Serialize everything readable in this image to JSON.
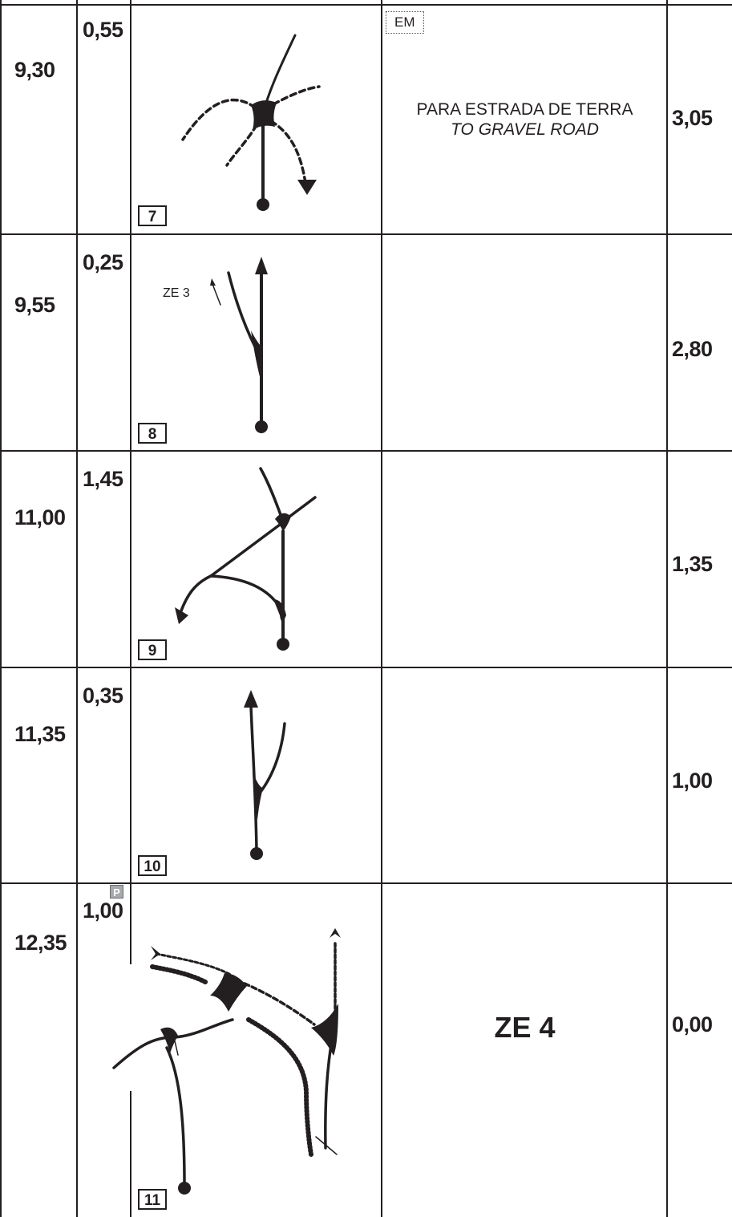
{
  "rows": [
    {
      "total": "9,30",
      "partial": "0,55",
      "box": "7",
      "remaining": "3,05"
    },
    {
      "total": "9,55",
      "partial": "0,25",
      "box": "8",
      "remaining": "2,80"
    },
    {
      "total": "11,00",
      "partial": "1,45",
      "box": "9",
      "remaining": "1,35"
    },
    {
      "total": "11,35",
      "partial": "0,35",
      "box": "10",
      "remaining": "1,00"
    },
    {
      "total": "12,35",
      "partial": "1,00",
      "box": "11",
      "remaining": "0,00"
    }
  ],
  "row1": {
    "em_label": "EM",
    "note_pt": "PARA ESTRADA DE TERRA",
    "note_en": "TO GRAVEL ROAD"
  },
  "row2": {
    "zone_label": "ZE 3"
  },
  "row5": {
    "zone_label": "ZE 4",
    "parking_label": "P"
  },
  "colors": {
    "ink": "#231f20",
    "hatch": "#231f20",
    "parking": "#a7a9ac"
  }
}
